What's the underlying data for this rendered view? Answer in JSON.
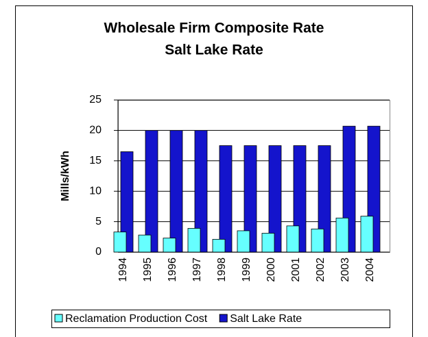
{
  "chart_data": {
    "type": "bar",
    "title": "Wholesale Firm Composite Rate",
    "subtitle": "Salt Lake Rate",
    "y_label": "Mills/kWh",
    "categories": [
      "1994",
      "1995",
      "1996",
      "1997",
      "1998",
      "1999",
      "2000",
      "2001",
      "2002",
      "2003",
      "2004"
    ],
    "series": [
      {
        "name": "Reclamation Production Cost",
        "color": "#66ffff",
        "values": [
          3.3,
          2.8,
          2.3,
          3.9,
          2.1,
          3.5,
          3.1,
          4.3,
          3.8,
          5.6,
          5.9
        ]
      },
      {
        "name": "Salt Lake Rate",
        "color": "#1414cc",
        "values": [
          16.5,
          20,
          20,
          20,
          17.5,
          17.5,
          17.5,
          17.5,
          17.5,
          20.7,
          20.7
        ]
      }
    ],
    "ylim": [
      0,
      25
    ],
    "yticks": [
      0,
      5,
      10,
      15,
      20,
      25
    ],
    "grid": true,
    "legend": "bottom"
  }
}
